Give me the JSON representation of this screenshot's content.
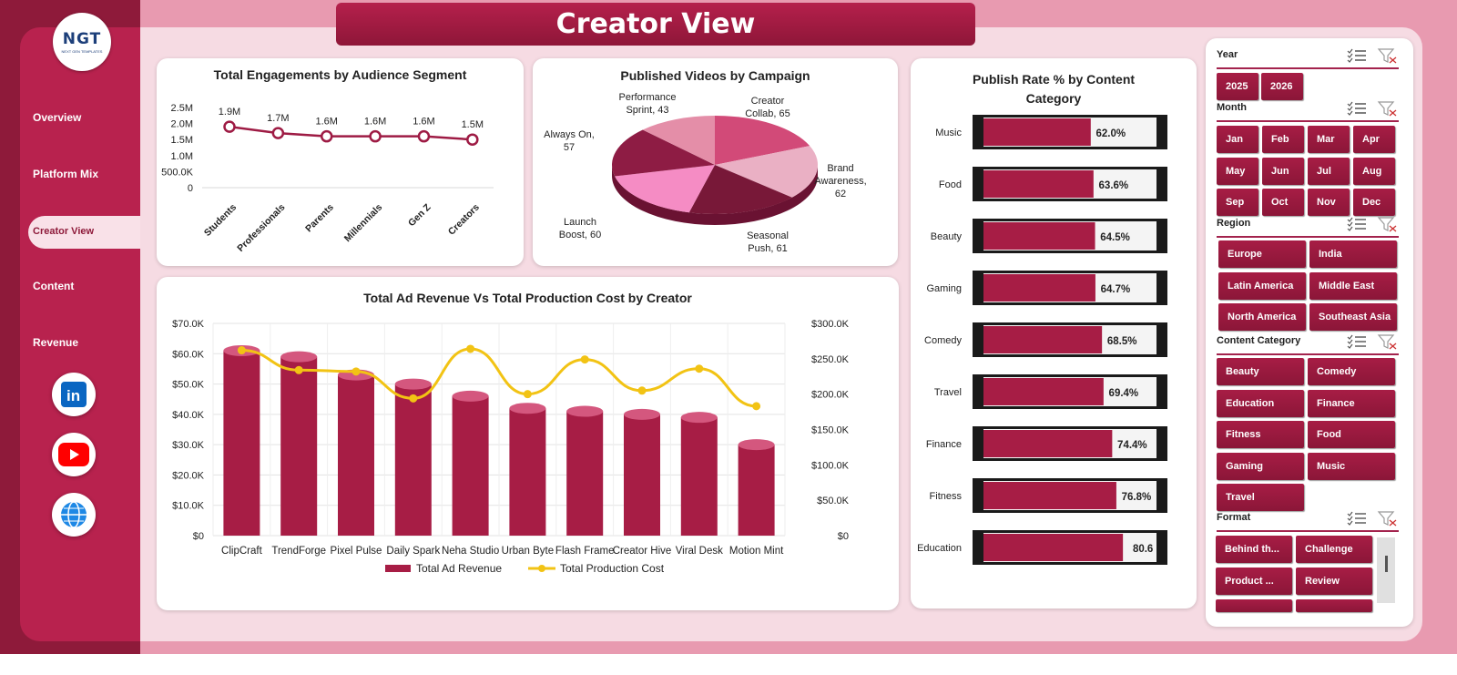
{
  "app": {
    "title": "Creator View",
    "logo_text": "NGT",
    "logo_subtext": "NEXT GEN TEMPLATES"
  },
  "nav": {
    "items": [
      {
        "label": "Overview"
      },
      {
        "label": "Platform Mix"
      },
      {
        "label": "Creator View",
        "active": true
      },
      {
        "label": "Content"
      },
      {
        "label": "Revenue"
      }
    ],
    "social": [
      {
        "icon": "linkedin-icon"
      },
      {
        "icon": "youtube-icon"
      },
      {
        "icon": "globe-icon"
      }
    ]
  },
  "colors": {
    "accent": "#a71d45",
    "dark": "#8e1a3a",
    "line_yellow": "#f2c314",
    "bg_pink": "#f6dbe3"
  },
  "chart_data": [
    {
      "type": "line",
      "title": "Total Engagements  by Audience Segment",
      "categories": [
        "Students",
        "Professionals",
        "Parents",
        "Millennials",
        "Gen Z",
        "Creators"
      ],
      "values": [
        1900000,
        1700000,
        1600000,
        1600000,
        1600000,
        1500000
      ],
      "data_labels": [
        "1.9M",
        "1.7M",
        "1.6M",
        "1.6M",
        "1.6M",
        "1.5M"
      ],
      "yticks": [
        "2.5M",
        "2.0M",
        "1.5M",
        "1.0M",
        "500.0K",
        "0"
      ],
      "ylim": [
        0,
        2500000
      ]
    },
    {
      "type": "pie",
      "title": "Published Videos by Campaign",
      "slices": [
        {
          "label_lines": [
            "Creator",
            "Collab, 65"
          ],
          "value": 65
        },
        {
          "label_lines": [
            "Brand",
            "Awareness,",
            "62"
          ],
          "value": 62
        },
        {
          "label_lines": [
            "Seasonal",
            "Push, 61"
          ],
          "value": 61
        },
        {
          "label_lines": [
            "Launch",
            "Boost, 60"
          ],
          "value": 60
        },
        {
          "label_lines": [
            "Always On,",
            "57"
          ],
          "value": 57
        },
        {
          "label_lines": [
            "Performance",
            "Sprint, 43"
          ],
          "value": 43
        }
      ],
      "colors": [
        "#d24a78",
        "#eab0c4",
        "#781838",
        "#f58cc4",
        "#8e1c44",
        "#e48ea8"
      ]
    },
    {
      "type": "bar",
      "title": "Publish Rate % by Content Category",
      "categories": [
        "Music",
        "Food",
        "Beauty",
        "Gaming",
        "Comedy",
        "Travel",
        "Finance",
        "Fitness",
        "Education"
      ],
      "values": [
        62.0,
        63.6,
        64.5,
        64.7,
        68.5,
        69.4,
        74.4,
        76.8,
        80.6
      ],
      "data_labels": [
        "62.0%",
        "63.6%",
        "64.5%",
        "64.7%",
        "68.5%",
        "69.4%",
        "74.4%",
        "76.8%",
        "80.6"
      ],
      "xlim": [
        0,
        100
      ]
    },
    {
      "type": "bar",
      "title": "Total Ad Revenue Vs Total Production Cost by Creator",
      "categories": [
        "ClipCraft",
        "TrendForge",
        "Pixel Pulse",
        "Daily Spark",
        "Neha Studio",
        "Urban Byte",
        "Flash Frame",
        "Creator Hive",
        "Viral Desk",
        "Motion Mint"
      ],
      "series": [
        {
          "name": "Total Ad Revenue",
          "values": [
            61000,
            59000,
            53000,
            50000,
            46000,
            42000,
            41000,
            40000,
            39000,
            30000
          ]
        },
        {
          "name": "Total Production Cost",
          "values": [
            262000,
            234000,
            232000,
            194000,
            264000,
            200000,
            249000,
            205000,
            236000,
            183000
          ]
        }
      ],
      "yticks_left": [
        "$70.0K",
        "$60.0K",
        "$50.0K",
        "$40.0K",
        "$30.0K",
        "$20.0K",
        "$10.0K",
        "$0"
      ],
      "yticks_right": [
        "$300.0K",
        "$250.0K",
        "$200.0K",
        "$150.0K",
        "$100.0K",
        "$50.0K",
        "$0"
      ],
      "ylim_left": [
        0,
        70000
      ],
      "ylim_right": [
        0,
        300000
      ]
    }
  ],
  "slicers": {
    "year": {
      "header": "Year",
      "items": [
        "2025",
        "2026"
      ]
    },
    "month": {
      "header": "Month",
      "items": [
        "Jan",
        "Feb",
        "Mar",
        "Apr",
        "May",
        "Jun",
        "Jul",
        "Aug",
        "Sep",
        "Oct",
        "Nov",
        "Dec"
      ]
    },
    "region": {
      "header": "Region",
      "items": [
        "Europe",
        "India",
        "Latin America",
        "Middle East",
        "North America",
        "Southeast Asia"
      ]
    },
    "category": {
      "header": "Content Category",
      "items": [
        "Beauty",
        "Comedy",
        "Education",
        "Finance",
        "Fitness",
        "Food",
        "Gaming",
        "Music",
        "Travel"
      ]
    },
    "format": {
      "header": "Format",
      "items": [
        "Behind th...",
        "Challenge",
        "Product ...",
        "Review"
      ]
    }
  }
}
